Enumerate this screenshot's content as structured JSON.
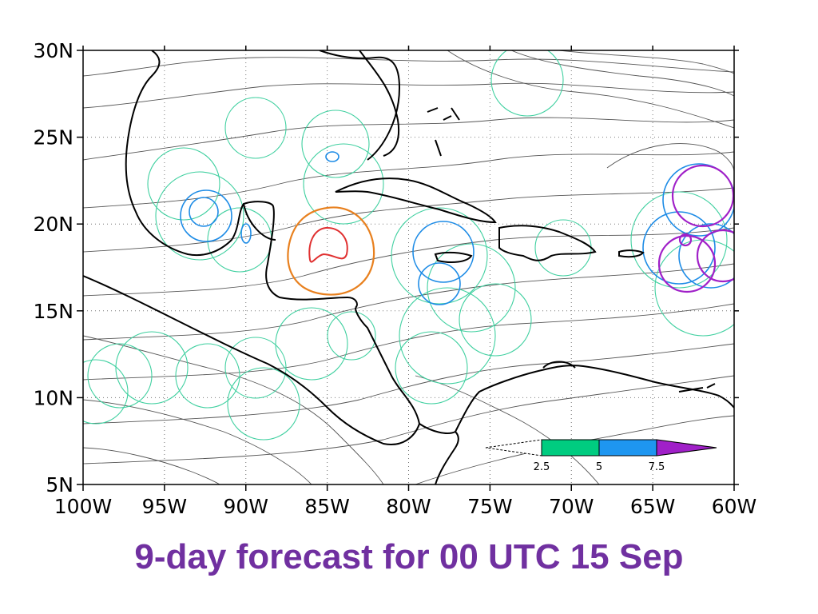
{
  "caption": "9-day forecast for 00 UTC 15 Sep",
  "map": {
    "lon_range": [
      -100,
      -60
    ],
    "lat_range": [
      5,
      30
    ],
    "lon_ticks": [
      {
        "value": -100,
        "label": "100W"
      },
      {
        "value": -95,
        "label": "95W"
      },
      {
        "value": -90,
        "label": "90W"
      },
      {
        "value": -85,
        "label": "85W"
      },
      {
        "value": -80,
        "label": "80W"
      },
      {
        "value": -75,
        "label": "75W"
      },
      {
        "value": -70,
        "label": "70W"
      },
      {
        "value": -65,
        "label": "65W"
      },
      {
        "value": -60,
        "label": "60W"
      }
    ],
    "lat_ticks": [
      {
        "value": 30,
        "label": "30N"
      },
      {
        "value": 25,
        "label": "25N"
      },
      {
        "value": 20,
        "label": "20N"
      },
      {
        "value": 15,
        "label": "15N"
      },
      {
        "value": 10,
        "label": "10N"
      },
      {
        "value": 5,
        "label": "5N"
      }
    ],
    "grid": "dotted"
  },
  "colorbar": {
    "labels": [
      "2.5",
      "5",
      "7.5"
    ],
    "colors": [
      "#00cc80",
      "#1e96f0",
      "#a020c8"
    ],
    "below_color": "#ffffff"
  },
  "contour_colors": {
    "low": "#40d0a0",
    "mid": "#1e8ce6",
    "high": "#a020c8",
    "orange": "#e8801e",
    "red": "#e03030",
    "streamline": "#555555",
    "coast": "#000000"
  }
}
